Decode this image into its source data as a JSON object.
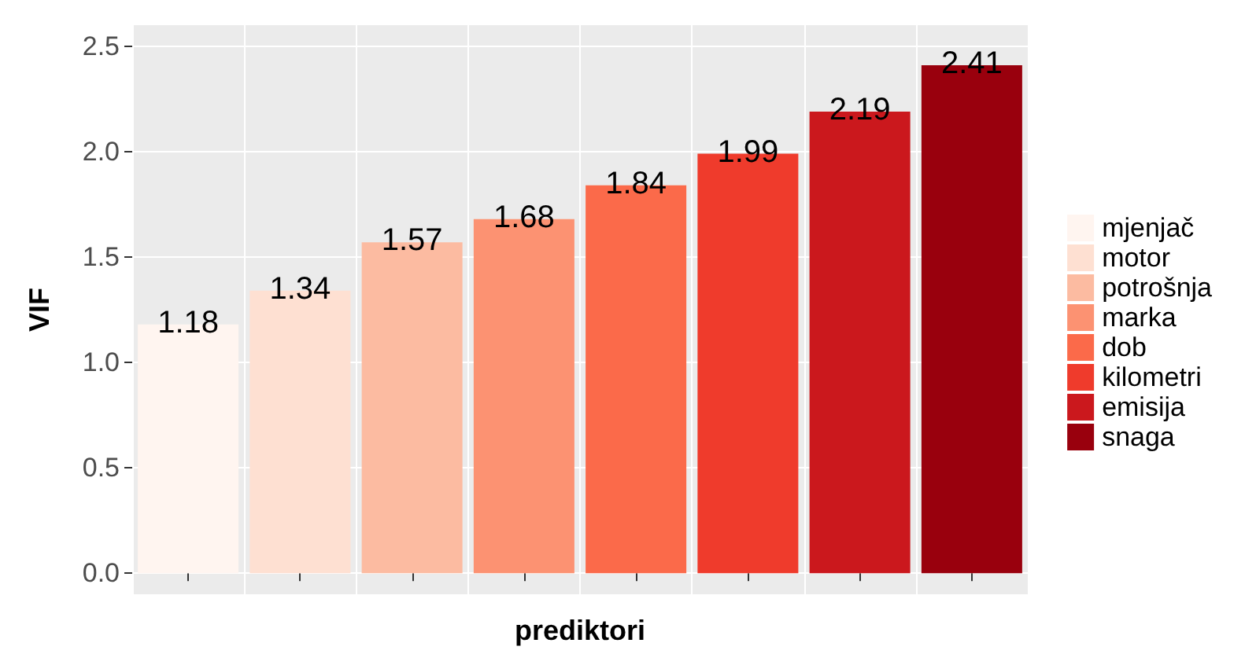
{
  "chart_data": {
    "type": "bar",
    "xlabel": "prediktori",
    "ylabel": "VIF",
    "categories": [
      null,
      null,
      null,
      null,
      null,
      null,
      null,
      null
    ],
    "data_labels": true,
    "grid": true,
    "legend": "right",
    "tick_labels": "y",
    "ylim": [
      -0.1,
      2.6
    ],
    "yticks": [
      {
        "value": 0,
        "label": "0.0"
      },
      0.5,
      {
        "value": 1,
        "label": "1.0"
      },
      1.5,
      {
        "value": 2,
        "label": "2.0"
      },
      2.5
    ],
    "series": [
      {
        "name": "mjenjač",
        "color": "#fff5f0",
        "values": [
          1.18,
          null,
          null,
          null,
          null,
          null,
          null,
          null
        ]
      },
      {
        "name": "motor",
        "color": "#fee0d2",
        "values": [
          null,
          1.34,
          null,
          null,
          null,
          null,
          null,
          null
        ]
      },
      {
        "name": "potrošnja",
        "color": "#fcbba1",
        "values": [
          null,
          null,
          1.57,
          null,
          null,
          null,
          null,
          null
        ]
      },
      {
        "name": "marka",
        "color": "#fc9272",
        "values": [
          null,
          null,
          null,
          1.68,
          null,
          null,
          null,
          null
        ]
      },
      {
        "name": "dob",
        "color": "#fb6a4a",
        "values": [
          null,
          null,
          null,
          null,
          1.84,
          null,
          null,
          null
        ]
      },
      {
        "name": "kilometri",
        "color": "#ef3b2c",
        "values": [
          null,
          null,
          null,
          null,
          null,
          1.99,
          null,
          null
        ]
      },
      {
        "name": "emisija",
        "color": "#cb181d",
        "values": [
          null,
          null,
          null,
          null,
          null,
          null,
          2.19,
          null
        ]
      },
      {
        "name": "snaga",
        "color": "#99000d",
        "values": [
          null,
          null,
          null,
          null,
          null,
          null,
          null,
          2.41
        ]
      }
    ]
  }
}
